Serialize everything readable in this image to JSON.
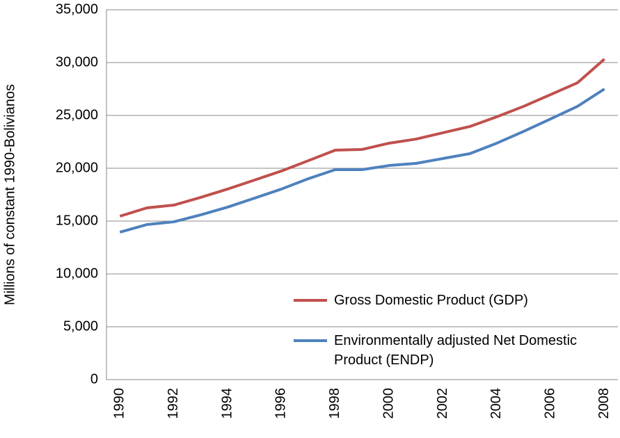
{
  "chart_data": {
    "type": "line",
    "y_label": "Millions of constant 1990-Bolivianos",
    "categories": [
      "1990",
      null,
      "1992",
      null,
      "1994",
      null,
      "1996",
      null,
      "1998",
      null,
      "2000",
      null,
      "2002",
      null,
      "2004",
      null,
      "2006",
      null,
      "2008"
    ],
    "series": [
      {
        "name": "Gross Domestic Product (GDP)",
        "color": "#c0504d",
        "values": [
          15460,
          16250,
          16510,
          17240,
          18030,
          18880,
          19740,
          20720,
          21710,
          21780,
          22370,
          22760,
          23360,
          23950,
          24870,
          25860,
          26970,
          28090,
          30330
        ]
      },
      {
        "name": "Environmentally adjusted Net Domestic Product (ENDP)",
        "color": "#4f81bd",
        "values": [
          13950,
          14670,
          14930,
          15590,
          16320,
          17170,
          18030,
          19010,
          19870,
          19870,
          20260,
          20460,
          20920,
          21380,
          22370,
          23490,
          24670,
          25860,
          27500
        ]
      }
    ],
    "ylim": [
      0,
      35000
    ],
    "yticks": [
      0,
      {
        "value": 5000,
        "label": "5,000"
      },
      {
        "value": 10000,
        "label": "10,000"
      },
      {
        "value": 15000,
        "label": "15,000"
      },
      {
        "value": 20000,
        "label": "20,000"
      },
      {
        "value": 25000,
        "label": "25,000"
      },
      {
        "value": 30000,
        "label": "30,000"
      },
      {
        "value": 35000,
        "label": "35,000"
      }
    ],
    "grid": true,
    "legend_position": "lower right"
  }
}
